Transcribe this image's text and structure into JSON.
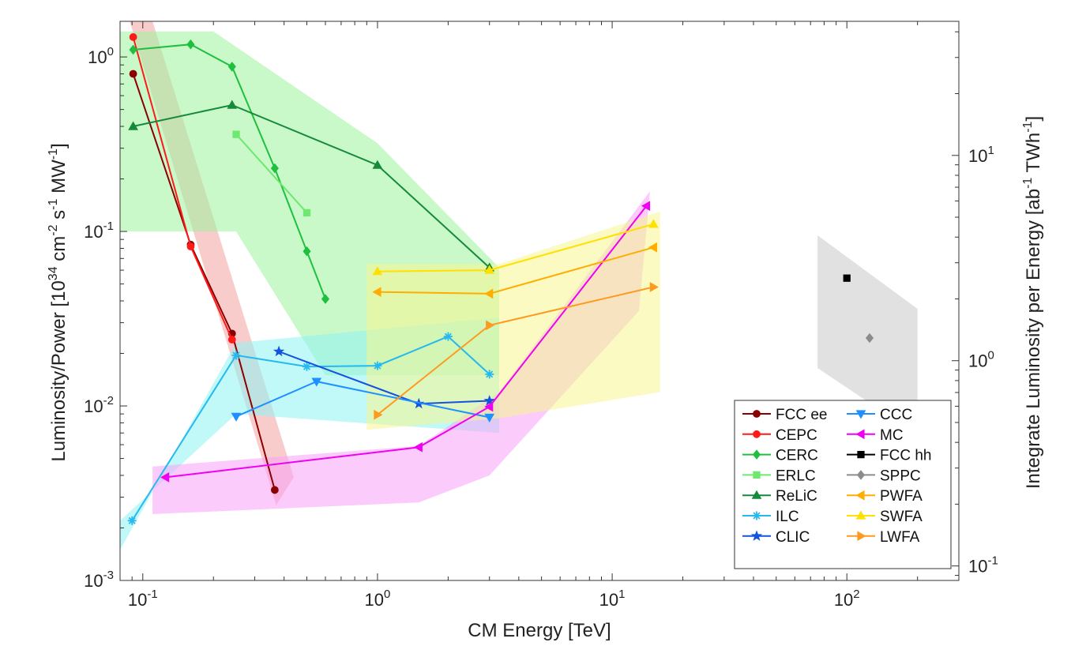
{
  "chart_data": {
    "type": "line",
    "xlabel": "CM Energy [TeV]",
    "ylabel_left": "Luminosity/Power [10",
    "ylabel_left_parts": [
      "Luminosity/Power [10",
      "34",
      " cm",
      "-2",
      " s",
      "-1",
      " MW",
      "-1",
      "]"
    ],
    "ylabel_right_parts": [
      "Integrate Luminosity per Energy [ab",
      "-1",
      " TWh",
      "-1",
      "]"
    ],
    "x_scale": "log",
    "y_scale": "log",
    "xlim": [
      0.08,
      300
    ],
    "ylim": [
      0.001,
      1.6
    ],
    "y2lim": [
      0.085,
      45
    ],
    "x_ticks": [
      {
        "base": "10",
        "exp": "-1",
        "value": 0.1
      },
      {
        "base": "10",
        "exp": "0",
        "value": 1
      },
      {
        "base": "10",
        "exp": "1",
        "value": 10
      },
      {
        "base": "10",
        "exp": "2",
        "value": 100
      }
    ],
    "y_ticks": [
      {
        "base": "10",
        "exp": "-3",
        "value": 0.001
      },
      {
        "base": "10",
        "exp": "-2",
        "value": 0.01
      },
      {
        "base": "10",
        "exp": "-1",
        "value": 0.1
      },
      {
        "base": "10",
        "exp": "0",
        "value": 1
      }
    ],
    "y2_ticks": [
      {
        "base": "10",
        "exp": "-1",
        "value": 0.1
      },
      {
        "base": "10",
        "exp": "0",
        "value": 1
      },
      {
        "base": "10",
        "exp": "1",
        "value": 10
      }
    ],
    "legend_placement": "bottom-right",
    "bands": [
      {
        "color": "#f4a3a3",
        "points": [
          [
            0.088,
            1.6
          ],
          [
            0.11,
            1.6
          ],
          [
            0.44,
            0.0039
          ],
          [
            0.37,
            0.0027
          ]
        ]
      },
      {
        "color": "#9cf39c",
        "points": [
          [
            0.08,
            1.4
          ],
          [
            0.2,
            1.4
          ],
          [
            1.0,
            0.32
          ],
          [
            3.3,
            0.062
          ],
          [
            3.3,
            0.015
          ],
          [
            0.6,
            0.015
          ],
          [
            0.25,
            0.1
          ],
          [
            0.08,
            0.1
          ]
        ]
      },
      {
        "color": "#8ef2f2",
        "points": [
          [
            0.08,
            0.0015
          ],
          [
            0.25,
            0.023
          ],
          [
            3.3,
            0.032
          ],
          [
            3.3,
            0.007
          ],
          [
            0.25,
            0.009
          ],
          [
            0.08,
            0.0022
          ]
        ]
      },
      {
        "color": "#f7a3f7",
        "points": [
          [
            0.11,
            0.0045
          ],
          [
            1.5,
            0.0059
          ],
          [
            3.3,
            0.012
          ],
          [
            14.5,
            0.17
          ],
          [
            13,
            0.035
          ],
          [
            3.0,
            0.004
          ],
          [
            1.5,
            0.0028
          ],
          [
            0.11,
            0.0024
          ]
        ]
      },
      {
        "color": "#f5f590",
        "points": [
          [
            0.9,
            0.065
          ],
          [
            3.3,
            0.065
          ],
          [
            16,
            0.13
          ],
          [
            16,
            0.012
          ],
          [
            3.3,
            0.0085
          ],
          [
            0.9,
            0.0073
          ]
        ]
      },
      {
        "color": "#c9c9c9",
        "points": [
          [
            75,
            0.095
          ],
          [
            200,
            0.036
          ],
          [
            200,
            0.0068
          ],
          [
            75,
            0.0165
          ]
        ]
      }
    ],
    "series": [
      {
        "name": "FCC ee",
        "color": "#8b0000",
        "marker": "circle",
        "x": [
          0.091,
          0.16,
          0.24,
          0.365
        ],
        "y": [
          0.8,
          0.084,
          0.026,
          0.0033
        ]
      },
      {
        "name": "CEPC",
        "color": "#ff1a1a",
        "marker": "circle",
        "x": [
          0.091,
          0.16,
          0.24
        ],
        "y": [
          1.3,
          0.082,
          0.024
        ]
      },
      {
        "name": "CERC",
        "color": "#1fbf3f",
        "marker": "diamond",
        "x": [
          0.091,
          0.16,
          0.24,
          0.365,
          0.5,
          0.6
        ],
        "y": [
          1.1,
          1.18,
          0.88,
          0.23,
          0.077,
          0.041
        ]
      },
      {
        "name": "ERLC",
        "color": "#6ee86e",
        "marker": "square",
        "x": [
          0.25,
          0.5
        ],
        "y": [
          0.36,
          0.128
        ]
      },
      {
        "name": "ReLiC",
        "color": "#168a3a",
        "marker": "triangle-up",
        "x": [
          0.091,
          0.24,
          1.0,
          3.0
        ],
        "y": [
          0.4,
          0.53,
          0.24,
          0.062
        ]
      },
      {
        "name": "ILC",
        "color": "#25b9f0",
        "marker": "asterisk",
        "x": [
          0.09,
          0.25,
          0.5,
          1.0,
          2.0,
          3.0
        ],
        "y": [
          0.0022,
          0.0195,
          0.0168,
          0.017,
          0.025,
          0.0152
        ]
      },
      {
        "name": "CLIC",
        "color": "#1552e0",
        "marker": "star",
        "x": [
          0.38,
          1.5,
          3.0
        ],
        "y": [
          0.0205,
          0.0103,
          0.0107
        ]
      },
      {
        "name": "CCC",
        "color": "#1e90ff",
        "marker": "triangle-down",
        "x": [
          0.25,
          0.55,
          3.0
        ],
        "y": [
          0.0087,
          0.0138,
          0.0086
        ]
      },
      {
        "name": "MC",
        "color": "#f000f0",
        "marker": "triangle-left",
        "x": [
          0.125,
          1.5,
          3.0,
          14.0
        ],
        "y": [
          0.0039,
          0.0058,
          0.0099,
          0.14
        ]
      },
      {
        "name": "FCC hh",
        "color": "#000000",
        "marker": "square",
        "x": [
          100
        ],
        "y": [
          0.054
        ]
      },
      {
        "name": "SPPC",
        "color": "#8c8c8c",
        "marker": "diamond",
        "x": [
          125
        ],
        "y": [
          0.0245
        ]
      },
      {
        "name": "PWFA",
        "color": "#ffad00",
        "marker": "triangle-left",
        "x": [
          1.0,
          3.0,
          15.0
        ],
        "y": [
          0.045,
          0.044,
          0.081
        ]
      },
      {
        "name": "SWFA",
        "color": "#ffe000",
        "marker": "triangle-up",
        "x": [
          1.0,
          3.0,
          15.0
        ],
        "y": [
          0.059,
          0.06,
          0.11
        ]
      },
      {
        "name": "LWFA",
        "color": "#ff9a20",
        "marker": "triangle-right",
        "x": [
          1.0,
          3.0,
          15.0
        ],
        "y": [
          0.0089,
          0.029,
          0.048
        ]
      }
    ]
  }
}
